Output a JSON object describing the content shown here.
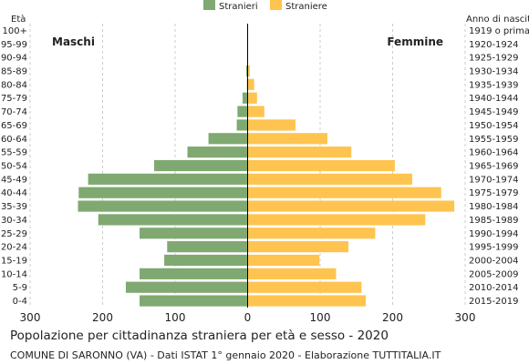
{
  "chart_data": {
    "type": "bar",
    "orientation": "horizontal-population-pyramid",
    "title": "Popolazione per cittadinanza straniera per età e sesso - 2020",
    "subtitle": "COMUNE DI SARONNO (VA) - Dati ISTAT 1° gennaio 2020 - Elaborazione TUTTITALIA.IT",
    "left_axis_title": "Età",
    "right_axis_title": "Anno di nascita",
    "left_side_label": "Maschi",
    "right_side_label": "Femmine",
    "xlim": [
      -300,
      300
    ],
    "x_ticks": [
      -300,
      -200,
      -100,
      0,
      100,
      200,
      300
    ],
    "x_tick_labels": [
      "300",
      "200",
      "100",
      "0",
      "100",
      "200",
      "300"
    ],
    "grid": true,
    "legend_position": "top-center",
    "age_groups": [
      "100+",
      "95-99",
      "90-94",
      "85-89",
      "80-84",
      "75-79",
      "70-74",
      "65-69",
      "60-64",
      "55-59",
      "50-54",
      "45-49",
      "40-44",
      "35-39",
      "30-34",
      "25-29",
      "20-24",
      "15-19",
      "10-14",
      "5-9",
      "0-4"
    ],
    "birth_years": [
      "1919 o prima",
      "1920-1924",
      "1925-1929",
      "1930-1934",
      "1935-1939",
      "1940-1944",
      "1945-1949",
      "1950-1954",
      "1955-1959",
      "1960-1964",
      "1965-1969",
      "1970-1974",
      "1975-1979",
      "1980-1984",
      "1985-1989",
      "1990-1994",
      "1995-1999",
      "2000-2004",
      "2005-2009",
      "2010-2014",
      "2015-2019"
    ],
    "series": [
      {
        "name": "Stranieri",
        "side": "left",
        "color": "#7fa971",
        "values": [
          0,
          0,
          0,
          2,
          1,
          7,
          14,
          15,
          54,
          83,
          129,
          220,
          233,
          234,
          206,
          149,
          111,
          115,
          149,
          168,
          149
        ]
      },
      {
        "name": "Straniere",
        "side": "right",
        "color": "#fec44f",
        "values": [
          0,
          0,
          0,
          3,
          9,
          13,
          23,
          66,
          110,
          143,
          203,
          227,
          267,
          285,
          245,
          176,
          139,
          99,
          122,
          157,
          163
        ]
      }
    ]
  }
}
